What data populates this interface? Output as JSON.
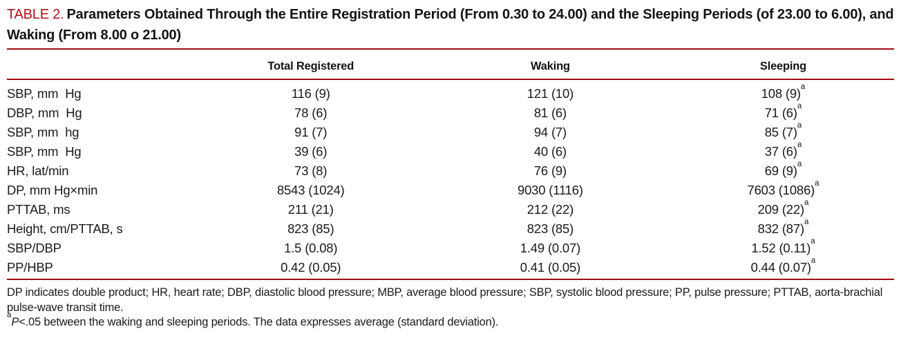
{
  "title": {
    "label": "TABLE 2.",
    "text": "Parameters Obtained Through the Entire Registration Period (From 0.30 to 24.00) and the Sleeping Periods (of 23.00 to 6.00), and Waking (From 8.00 o 21.00)"
  },
  "colors": {
    "accent_red": "#b01015",
    "rule_red": "#9e0c11",
    "text": "#1a1a1a"
  },
  "table": {
    "columns": [
      "",
      "Total Registered",
      "Waking",
      "Sleeping"
    ],
    "rows": [
      {
        "label": "SBP, mm  Hg",
        "total": "116 (9)",
        "waking": "121 (10)",
        "sleeping": "108 (9)",
        "sup": "a"
      },
      {
        "label": "DBP, mm  Hg",
        "total": "78 (6)",
        "waking": "81 (6)",
        "sleeping": "71 (6)",
        "sup": "a"
      },
      {
        "label": "SBP, mm  hg",
        "total": "91 (7)",
        "waking": "94 (7)",
        "sleeping": "85 (7)",
        "sup": "a"
      },
      {
        "label": "SBP, mm  Hg",
        "total": "39 (6)",
        "waking": "40 (6)",
        "sleeping": "37 (6)",
        "sup": "a"
      },
      {
        "label": "HR, lat/min",
        "total": "73 (8)",
        "waking": "76 (9)",
        "sleeping": "69 (9)",
        "sup": "a"
      },
      {
        "label": "DP, mm Hg×min",
        "total": "8543 (1024)",
        "waking": "9030 (1116)",
        "sleeping": "7603 (1086)",
        "sup": "a"
      },
      {
        "label": "PTTAB, ms",
        "total": "211 (21)",
        "waking": "212 (22)",
        "sleeping": "209 (22)",
        "sup": "a"
      },
      {
        "label": "Height, cm/PTTAB, s",
        "total": "823 (85)",
        "waking": "823 (85)",
        "sleeping": "832 (87)",
        "sup": "a"
      },
      {
        "label": "SBP/DBP",
        "total": "1.5 (0.08)",
        "waking": "1.49 (0.07)",
        "sleeping": "1.52 (0.11)",
        "sup": "a"
      },
      {
        "label": "PP/HBP",
        "total": "0.42 (0.05)",
        "waking": "0.41 (0.05)",
        "sleeping": "0.44 (0.07)",
        "sup": "a"
      }
    ]
  },
  "footnotes": {
    "abbreviations": "DP indicates double product; HR, heart rate; DBP, diastolic blood pressure; MBP, average blood pressure; SBP, systolic blood pressure; PP, pulse pressure; PTTAB, aorta-brachial pulse-wave transit time.",
    "sig_sup": "a",
    "sig_p": "P",
    "sig_rest": "<.05 between the waking and sleeping periods. The data expresses average (standard deviation)."
  }
}
